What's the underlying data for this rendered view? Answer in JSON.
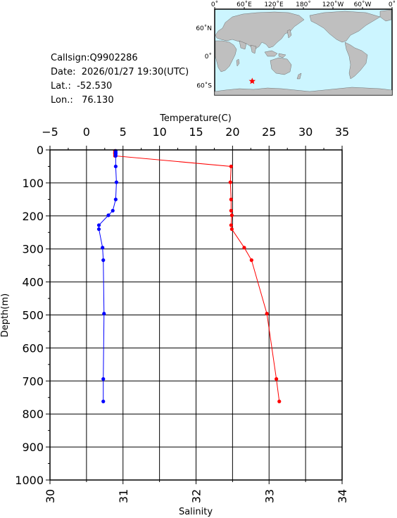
{
  "info": {
    "callsign": "Callsign:Q9902286",
    "date": "Date:  2026/01/27 19:30(UTC)",
    "lat": "Lat.:  -52.530",
    "lon": "Lon.:   76.130"
  },
  "map": {
    "top_labels": [
      "0˚",
      "60˚E",
      "120˚E",
      "180˚",
      "120˚W",
      "60˚W",
      "0˚"
    ],
    "left_labels": [
      "60˚N",
      "0˚",
      "60˚S"
    ],
    "ocean_color": "#ccf5ff",
    "land_color": "#bfbfbf",
    "marker_color": "#ff0000",
    "marker_icon": "star-icon"
  },
  "chart_data": {
    "type": "line",
    "y_axis": {
      "label": "Depth(m)",
      "range": [
        0,
        1000
      ],
      "ticks": [
        0,
        100,
        200,
        300,
        400,
        500,
        600,
        700,
        800,
        900,
        1000
      ],
      "inverted": true
    },
    "top_axis": {
      "label": "Temperature(C)",
      "range": [
        -5,
        35
      ],
      "ticks": [
        -5,
        0,
        5,
        10,
        15,
        20,
        25,
        30,
        35
      ]
    },
    "bottom_axis": {
      "label": "Salinity",
      "range": [
        30,
        34
      ],
      "ticks": [
        30,
        31,
        32,
        33,
        34
      ]
    },
    "grid": true,
    "series": [
      {
        "color": "#ff0000",
        "axis": "top",
        "points": [
          {
            "x": 3.9,
            "depth": 3
          },
          {
            "x": 3.9,
            "depth": 8
          },
          {
            "x": 3.9,
            "depth": 12
          },
          {
            "x": 3.9,
            "depth": 18
          },
          {
            "x": 19.8,
            "depth": 50
          },
          {
            "x": 19.7,
            "depth": 98
          },
          {
            "x": 19.8,
            "depth": 150
          },
          {
            "x": 19.8,
            "depth": 184
          },
          {
            "x": 19.9,
            "depth": 198
          },
          {
            "x": 19.8,
            "depth": 228
          },
          {
            "x": 19.9,
            "depth": 240
          },
          {
            "x": 21.6,
            "depth": 296
          },
          {
            "x": 22.6,
            "depth": 334
          },
          {
            "x": 24.7,
            "depth": 496
          },
          {
            "x": 26.0,
            "depth": 694
          },
          {
            "x": 26.4,
            "depth": 762
          }
        ]
      },
      {
        "color": "#0000ff",
        "axis": "bottom",
        "points": [
          {
            "x": 30.9,
            "depth": 3
          },
          {
            "x": 30.9,
            "depth": 8
          },
          {
            "x": 30.9,
            "depth": 12
          },
          {
            "x": 30.9,
            "depth": 18
          },
          {
            "x": 30.9,
            "depth": 50
          },
          {
            "x": 30.91,
            "depth": 98
          },
          {
            "x": 30.9,
            "depth": 150
          },
          {
            "x": 30.86,
            "depth": 184
          },
          {
            "x": 30.8,
            "depth": 198
          },
          {
            "x": 30.67,
            "depth": 228
          },
          {
            "x": 30.67,
            "depth": 240
          },
          {
            "x": 30.72,
            "depth": 296
          },
          {
            "x": 30.73,
            "depth": 334
          },
          {
            "x": 30.74,
            "depth": 496
          },
          {
            "x": 30.73,
            "depth": 694
          },
          {
            "x": 30.73,
            "depth": 762
          }
        ]
      }
    ]
  }
}
